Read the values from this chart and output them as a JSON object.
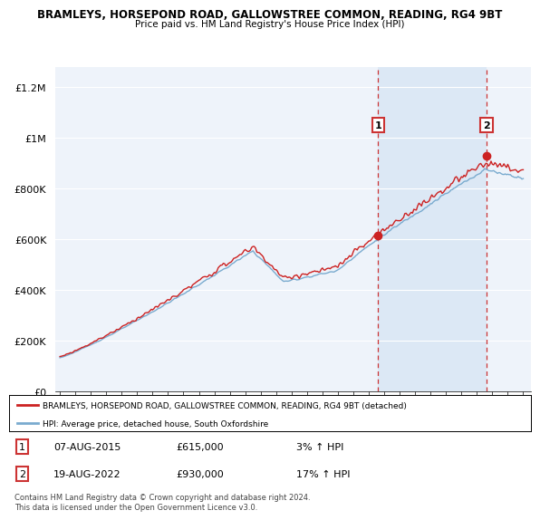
{
  "title1": "BRAMLEYS, HORSEPOND ROAD, GALLOWSTREE COMMON, READING, RG4 9BT",
  "title2": "Price paid vs. HM Land Registry's House Price Index (HPI)",
  "ylabel_ticks": [
    "£0",
    "£200K",
    "£400K",
    "£600K",
    "£800K",
    "£1M",
    "£1.2M"
  ],
  "ytick_vals": [
    0,
    200000,
    400000,
    600000,
    800000,
    1000000,
    1200000
  ],
  "ylim": [
    0,
    1280000
  ],
  "xlim_start": 1994.7,
  "xlim_end": 2025.5,
  "sale1_date": 2015.6,
  "sale1_price": 615000,
  "sale1_label": "1",
  "sale2_date": 2022.62,
  "sale2_price": 930000,
  "sale2_label": "2",
  "hpi_color": "#7aabcf",
  "price_color": "#cc2222",
  "sale_marker_color": "#cc2222",
  "dashed_line_color": "#cc3333",
  "shade_color": "#dce8f5",
  "background_color": "#eef3fa",
  "legend_label1": "BRAMLEYS, HORSEPOND ROAD, GALLOWSTREE COMMON, READING, RG4 9BT (detached)",
  "legend_label2": "HPI: Average price, detached house, South Oxfordshire",
  "footnote": "Contains HM Land Registry data © Crown copyright and database right 2024.\nThis data is licensed under the Open Government Licence v3.0.",
  "table_rows": [
    {
      "num": "1",
      "date": "07-AUG-2015",
      "price": "£615,000",
      "hpi": "3% ↑ HPI"
    },
    {
      "num": "2",
      "date": "19-AUG-2022",
      "price": "£930,000",
      "hpi": "17% ↑ HPI"
    }
  ],
  "xtick_years": [
    1995,
    1996,
    1997,
    1998,
    1999,
    2000,
    2001,
    2002,
    2003,
    2004,
    2005,
    2006,
    2007,
    2008,
    2009,
    2010,
    2011,
    2012,
    2013,
    2014,
    2015,
    2016,
    2017,
    2018,
    2019,
    2020,
    2021,
    2022,
    2023,
    2024,
    2025
  ]
}
